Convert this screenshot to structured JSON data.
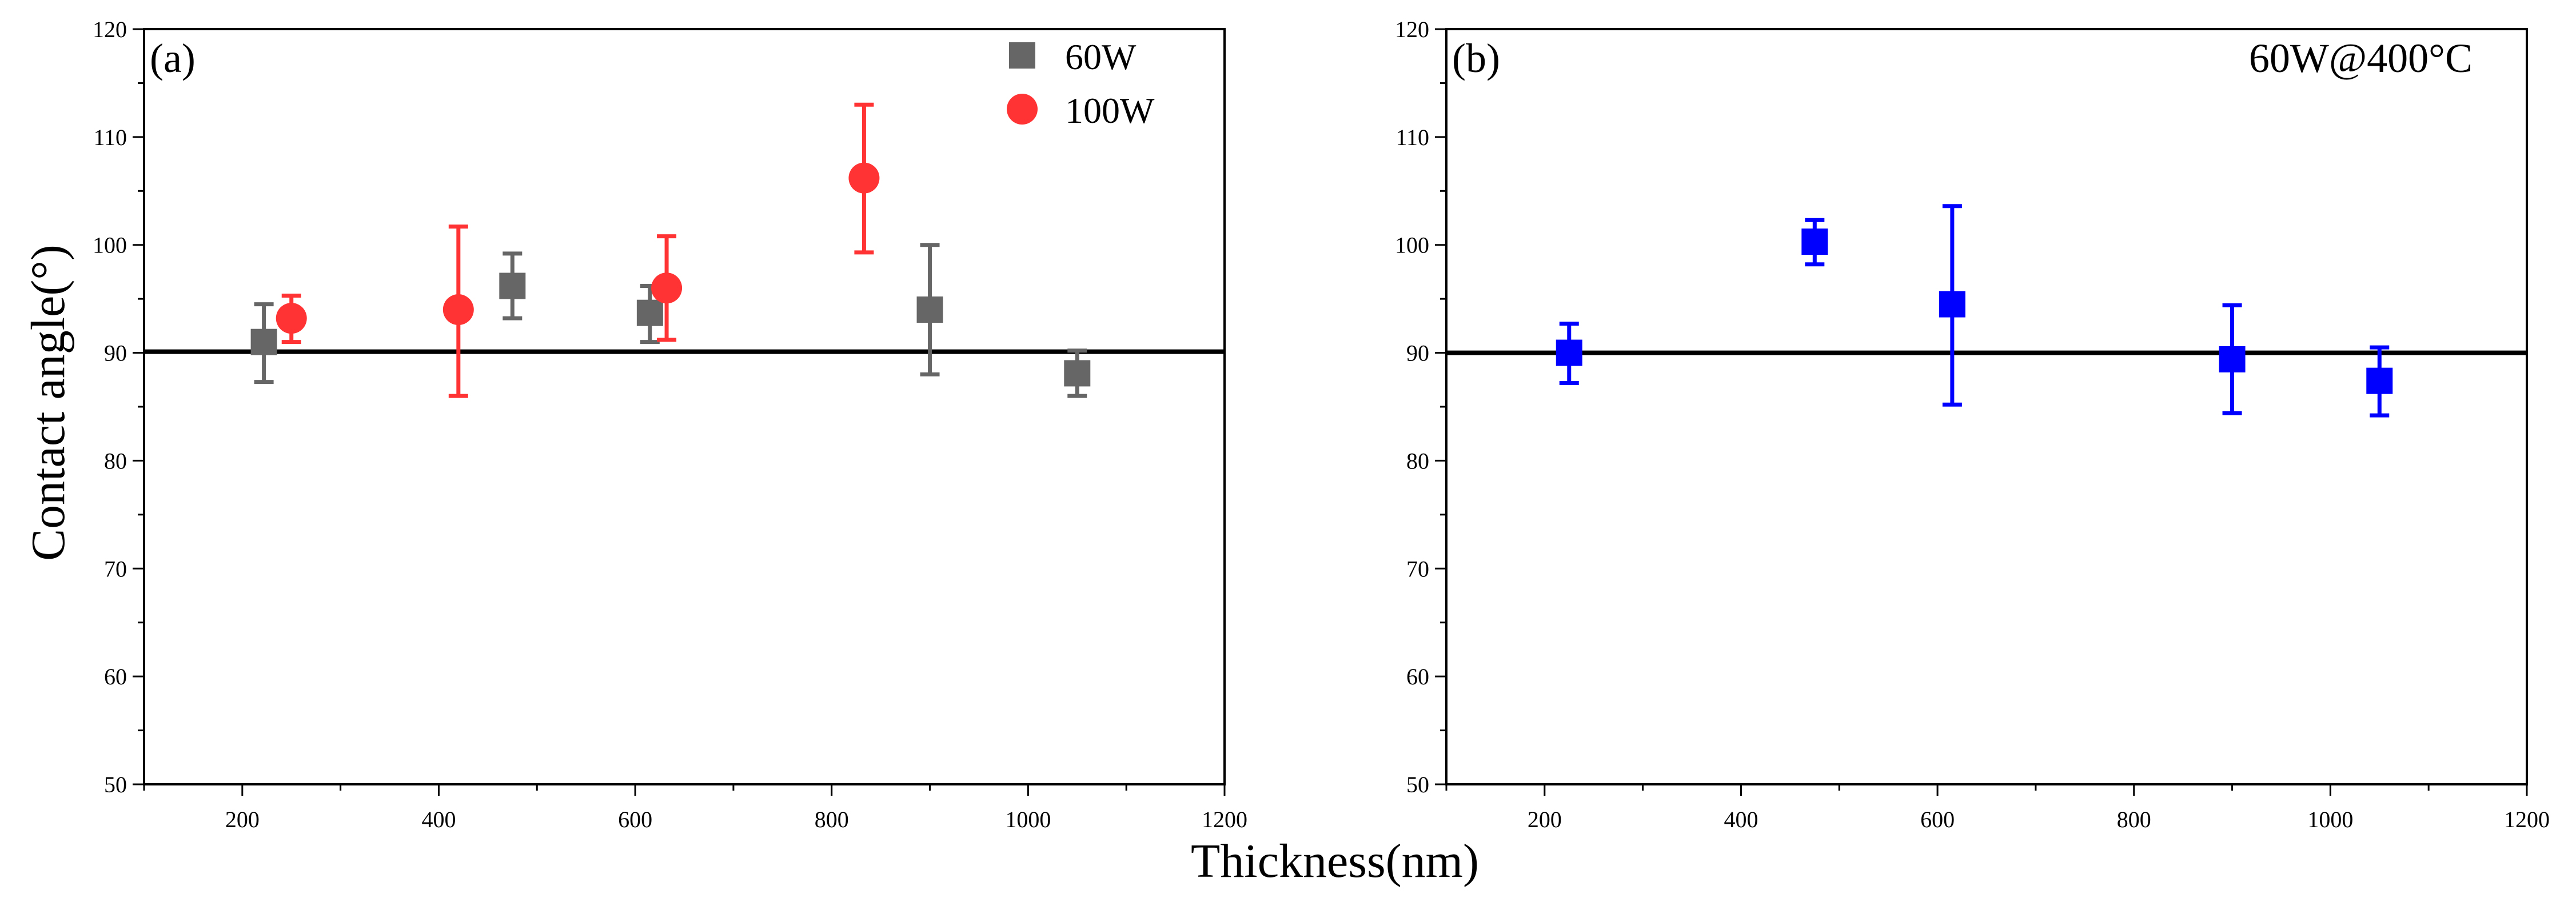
{
  "ylabel": "Contact angle(°)",
  "xlabel": "Thickness(nm)",
  "chart_data": [
    {
      "type": "scatter",
      "panel_label": "(a)",
      "xlim": [
        100,
        1200
      ],
      "ylim": [
        50,
        120
      ],
      "x_ticks": [
        200,
        400,
        600,
        800,
        1000,
        1200
      ],
      "y_ticks": [
        50,
        60,
        70,
        80,
        90,
        100,
        110,
        120
      ],
      "reference_line_y": 90.1,
      "legend_position": "top-right",
      "series": [
        {
          "name": "60W",
          "marker": "square",
          "color": "#666666",
          "x": [
            222,
            475,
            615,
            900,
            1050
          ],
          "y": [
            91.0,
            96.2,
            93.7,
            94.0,
            88.1
          ],
          "yerr_low": [
            87.3,
            93.2,
            91.0,
            88.0,
            86.0
          ],
          "yerr_high": [
            94.5,
            99.2,
            96.2,
            100.0,
            90.2
          ]
        },
        {
          "name": "100W",
          "marker": "circle",
          "color": "#ff3333",
          "x": [
            250,
            420,
            632,
            833
          ],
          "y": [
            93.2,
            94.0,
            96.0,
            106.2
          ],
          "yerr_low": [
            91.0,
            86.0,
            91.2,
            99.3
          ],
          "yerr_high": [
            95.3,
            101.7,
            100.8,
            113.0
          ]
        }
      ]
    },
    {
      "type": "scatter",
      "panel_label": "(b)",
      "annotation": "60W@400°C",
      "xlim": [
        100,
        1200
      ],
      "ylim": [
        50,
        120
      ],
      "x_ticks": [
        200,
        400,
        600,
        800,
        1000,
        1200
      ],
      "y_ticks": [
        50,
        60,
        70,
        80,
        90,
        100,
        110,
        120
      ],
      "reference_line_y": 90.0,
      "series": [
        {
          "name": "60W@400°C",
          "marker": "square",
          "color": "#0000ff",
          "x": [
            225,
            475,
            615,
            900,
            1050
          ],
          "y": [
            90.0,
            100.3,
            94.5,
            89.4,
            87.4
          ],
          "yerr_low": [
            87.2,
            98.2,
            85.2,
            84.4,
            84.2
          ],
          "yerr_high": [
            92.7,
            102.3,
            103.6,
            94.4,
            90.5
          ]
        }
      ]
    }
  ]
}
